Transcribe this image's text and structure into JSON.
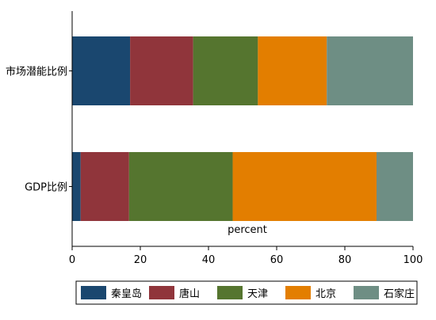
{
  "chart_data": {
    "type": "bar",
    "orientation": "horizontal",
    "stacked": true,
    "categories": [
      "市场潜能比例",
      "GDP比例"
    ],
    "series": [
      {
        "name": "秦皇岛",
        "values": [
          17,
          2.5
        ],
        "color": "#1a476f"
      },
      {
        "name": "唐山",
        "values": [
          18.5,
          14.2
        ],
        "color": "#90353b"
      },
      {
        "name": "天津",
        "values": [
          19,
          30.4
        ],
        "color": "#55752f"
      },
      {
        "name": "北京",
        "values": [
          20.2,
          42.2
        ],
        "color": "#e37e00"
      },
      {
        "name": "石家庄",
        "values": [
          25.3,
          10.7
        ],
        "color": "#6e8e84"
      }
    ],
    "xlabel": "percent",
    "xlim": [
      0,
      100
    ],
    "xticks": [
      0,
      20,
      40,
      60,
      80,
      100
    ],
    "grid": false,
    "legend_position": "bottom"
  }
}
